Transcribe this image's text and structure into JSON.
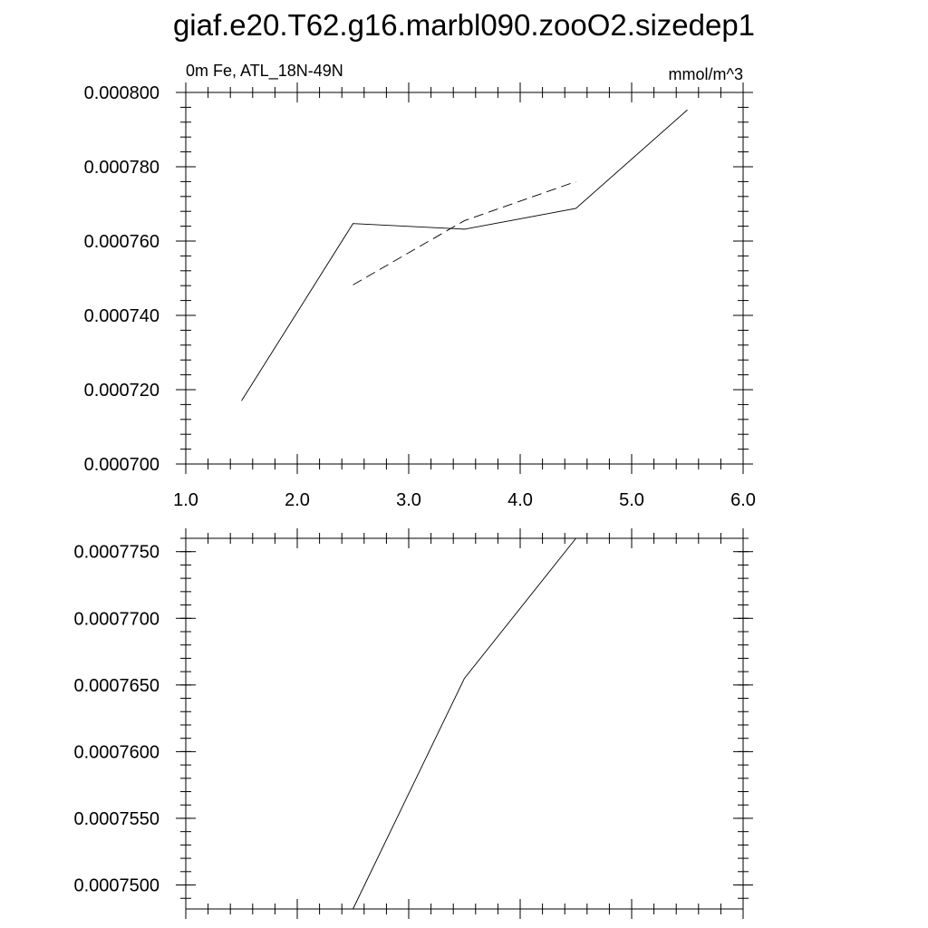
{
  "title": "giaf.e20.T62.g16.marbl090.zooO2.sizedep1",
  "chart_data": [
    {
      "type": "line",
      "left_label": "0m Fe, ATL_18N-49N",
      "right_label": "mmol/m^3",
      "xlim": [
        1.0,
        6.0
      ],
      "ylim": [
        0.0007,
        0.0008
      ],
      "x_ticks": [
        1.0,
        2.0,
        3.0,
        4.0,
        5.0,
        6.0
      ],
      "x_tick_labels": [
        "1.0",
        "2.0",
        "3.0",
        "4.0",
        "5.0",
        "6.0"
      ],
      "y_ticks": [
        0.0007,
        0.00072,
        0.00074,
        0.00076,
        0.00078,
        0.0008
      ],
      "y_tick_labels": [
        "0.000700",
        "0.000720",
        "0.000740",
        "0.000760",
        "0.000780",
        "0.000800"
      ],
      "grid": false,
      "series": [
        {
          "style": "solid",
          "x": [
            1.5,
            2.5,
            3.5,
            4.5,
            5.5
          ],
          "y": [
            0.000717,
            0.0007647,
            0.0007632,
            0.0007688,
            0.0007953
          ]
        },
        {
          "style": "dashed",
          "x": [
            2.5,
            3.5,
            4.5
          ],
          "y": [
            0.0007482,
            0.0007655,
            0.000776
          ]
        }
      ]
    },
    {
      "type": "line",
      "xlim": [
        1.0,
        6.0
      ],
      "ylim": [
        0.0007482,
        0.000776
      ],
      "x_ticks": [
        1.0,
        2.0,
        3.0,
        4.0,
        5.0,
        6.0
      ],
      "y_ticks": [
        0.00075,
        0.000755,
        0.00076,
        0.000765,
        0.00077,
        0.000775
      ],
      "y_tick_labels": [
        "0.0007500",
        "0.0007550",
        "0.0007600",
        "0.0007650",
        "0.0007700",
        "0.0007750"
      ],
      "grid": false,
      "series": [
        {
          "style": "solid",
          "x": [
            2.5,
            3.5,
            4.5
          ],
          "y": [
            0.0007482,
            0.0007655,
            0.000776
          ]
        }
      ]
    }
  ]
}
